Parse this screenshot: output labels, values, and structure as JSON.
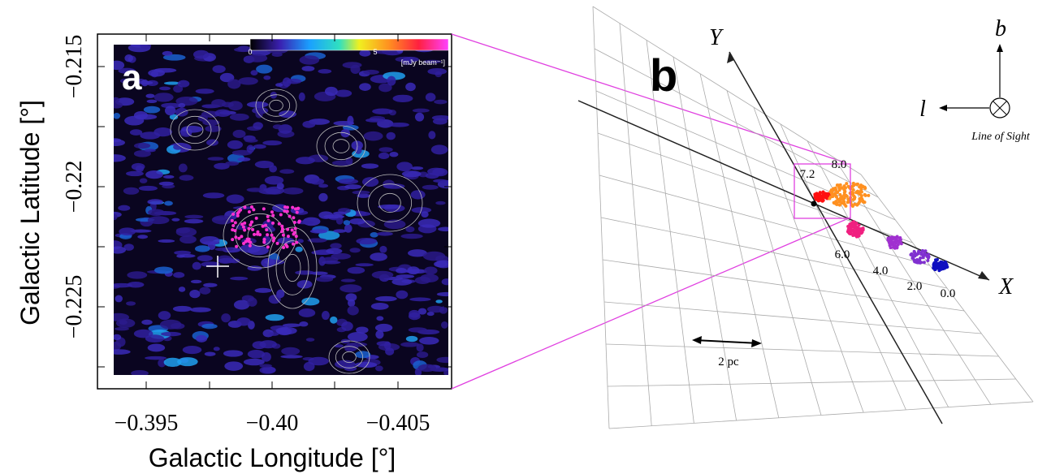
{
  "panel_a": {
    "label": "a",
    "x_axis_label": "Galactic Longitude [°]",
    "y_axis_label": "Galactic Latitude [°]",
    "x_tick_labels": [
      "−0.395",
      "−0.40",
      "−0.405"
    ],
    "y_tick_labels": [
      "−0.215",
      "−0.22",
      "−0.225"
    ],
    "colorbar_tick_labels": [
      "0",
      "5"
    ],
    "colorbar_unit": "[mJy beam⁻¹]"
  },
  "panel_b": {
    "label": "b",
    "axis_x": "X",
    "axis_y": "Y",
    "compass_b": "b",
    "compass_l": "l",
    "line_of_sight": "Line of Sight",
    "scale_bar": "2 pc",
    "position_labels": [
      "0.0",
      "2.0",
      "4.0",
      "6.0",
      "7.2",
      "8.0"
    ]
  }
}
